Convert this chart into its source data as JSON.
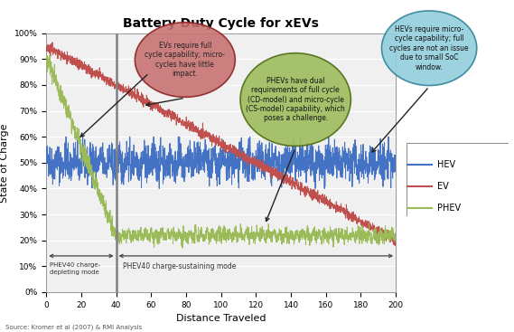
{
  "title": "Battery Duty Cycle for xEVs",
  "xlabel": "Distance Traveled",
  "ylabel": "State of Charge",
  "xlim": [
    0,
    200
  ],
  "ylim": [
    0,
    1.0
  ],
  "yticks": [
    0,
    0.1,
    0.2,
    0.3,
    0.4,
    0.5,
    0.6,
    0.7,
    0.8,
    0.9,
    1.0
  ],
  "xticks": [
    0,
    20,
    40,
    60,
    80,
    100,
    120,
    140,
    160,
    180,
    200
  ],
  "hev_color": "#4472C4",
  "ev_color": "#C0504D",
  "phev_color": "#9BBB59",
  "plot_bg_color": "#F0F0F0",
  "source_text": "Source: Kromer et al (2007) & RMI Analysis",
  "annotation_ev_text": "EVs require full\ncycle capability; micro-\ncycles have little\nimpact.",
  "annotation_phev_text": "PHEVs have dual\nrequirements of full cycle\n(CD-model) and micro-cycle\n(CS-model) capability, which\nposes a challenge.",
  "annotation_hev_text": "HEVs require micro-\ncycle capability; full\ncycles are not an issue\ndue to small SoC\nwindow.",
  "phev_cd_text": "PHEV40 charge-\ndepleting mode",
  "phev_cs_text": "PHEV40 charge-sustaining mode",
  "vline_x": 40,
  "ev_bubble_color": "#C0504D",
  "ev_bubble_edge": "#8B2020",
  "phev_bubble_color": "#9BBB59",
  "phev_bubble_edge": "#4A6A10",
  "hev_bubble_color": "#92CDDC",
  "hev_bubble_edge": "#31849B"
}
